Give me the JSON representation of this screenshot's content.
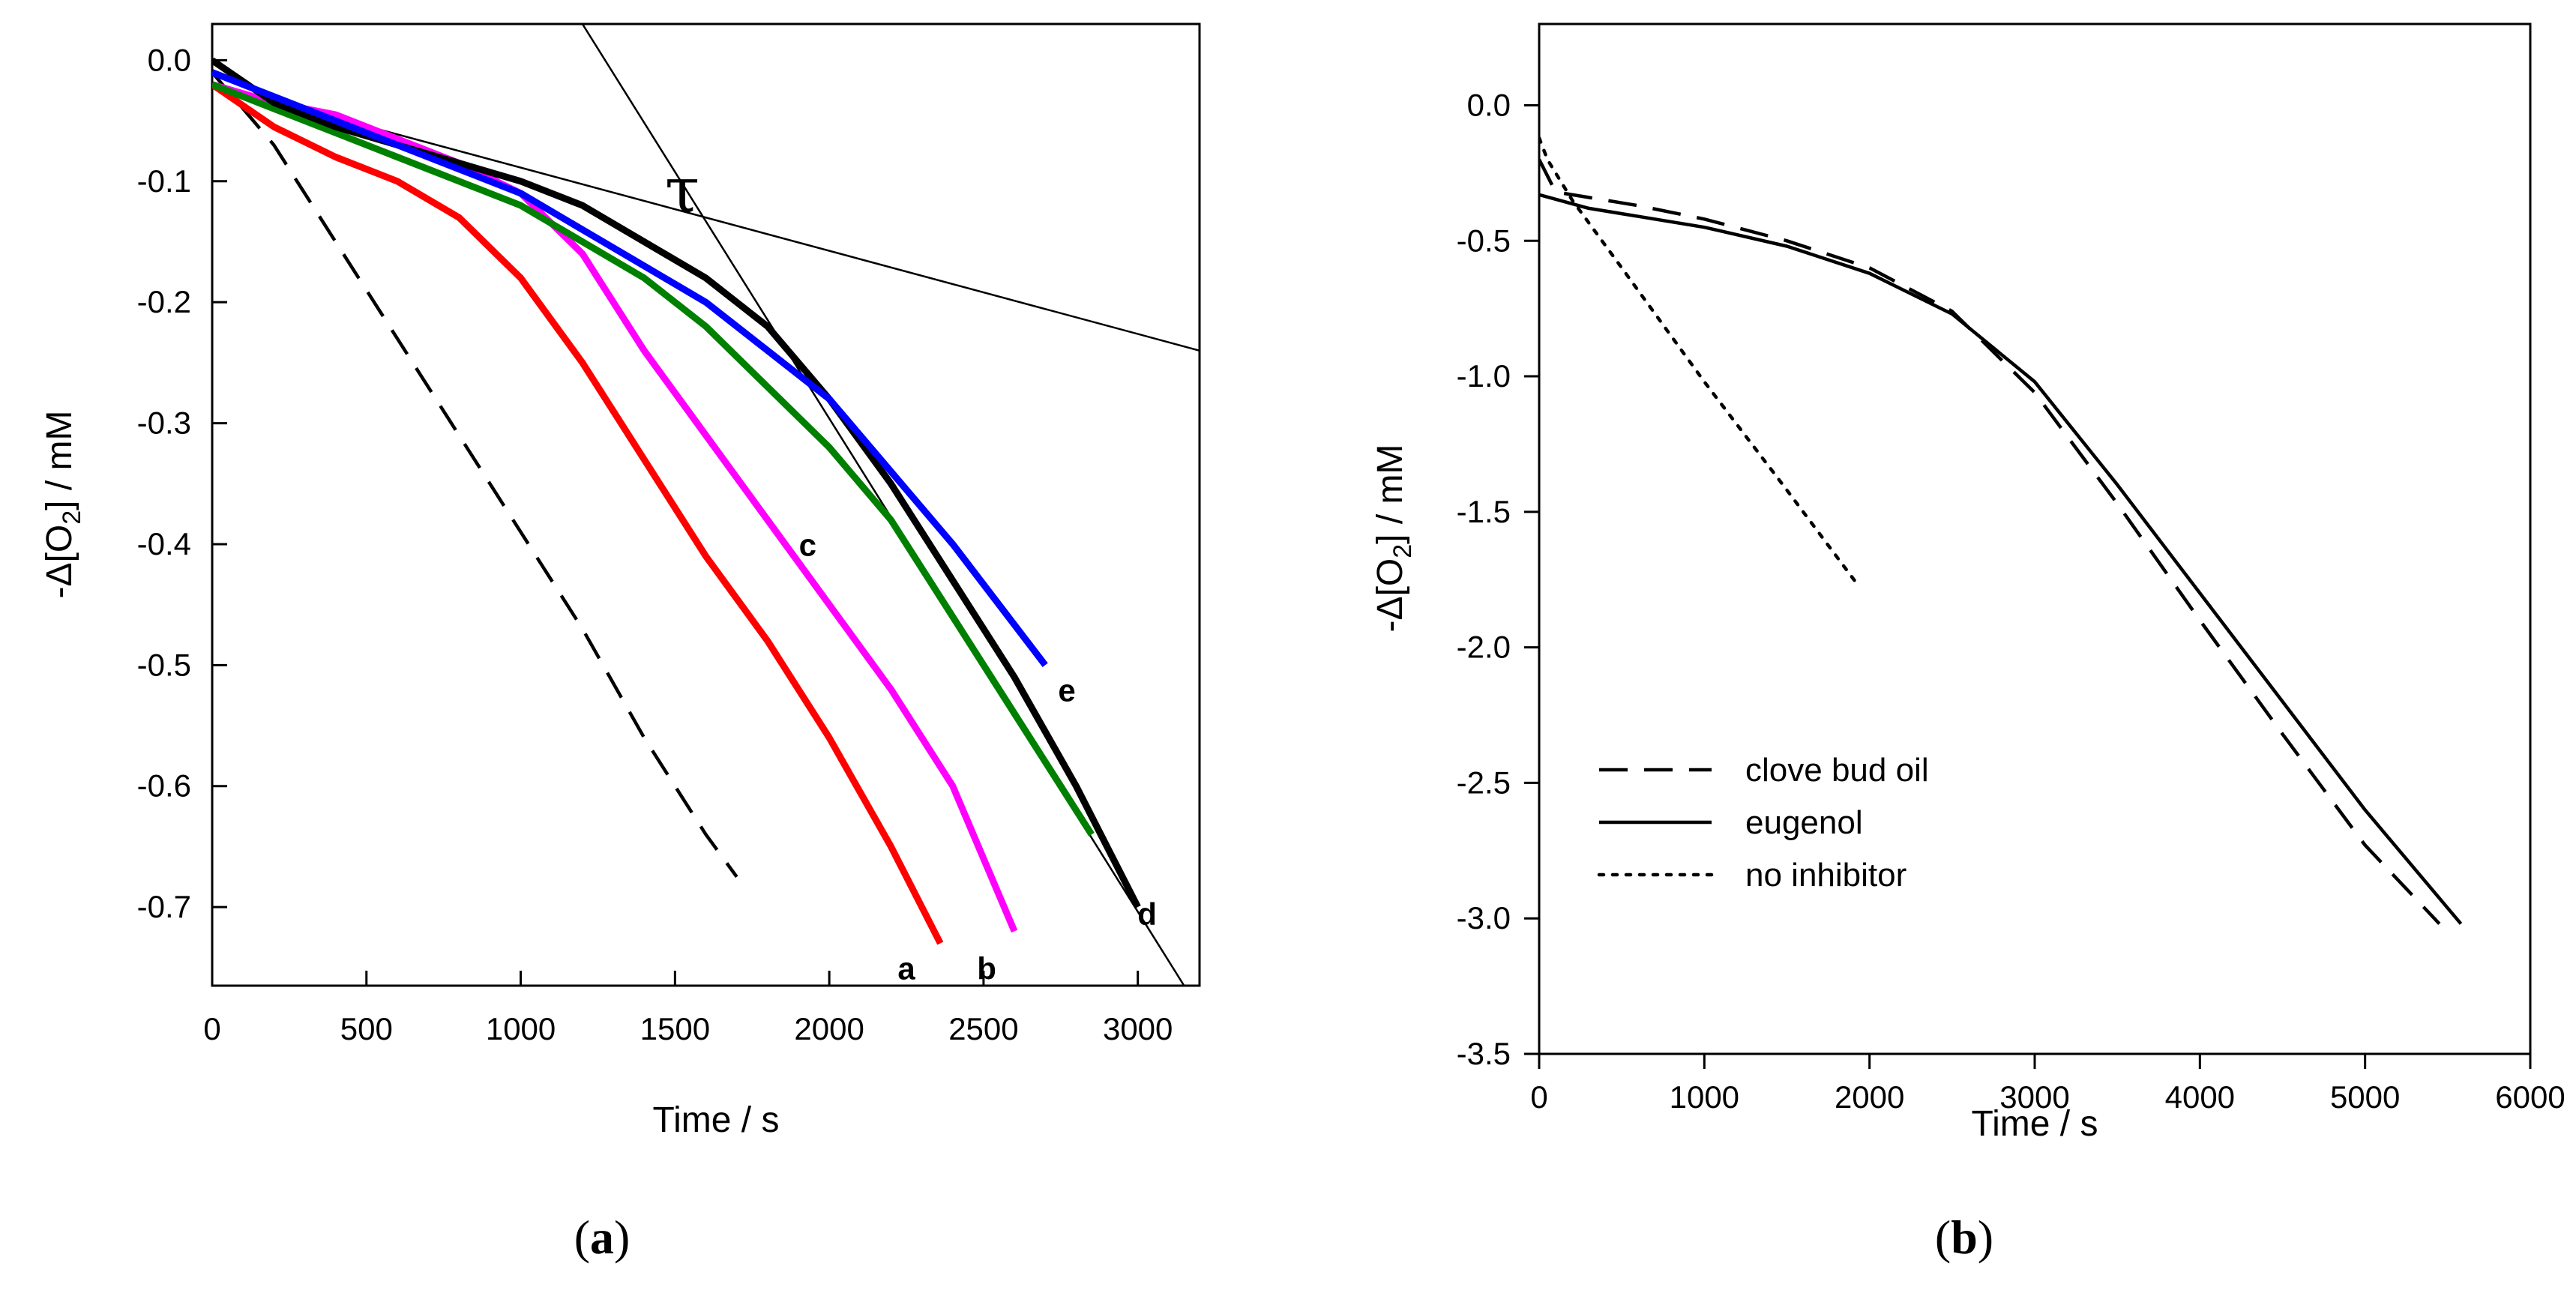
{
  "chart_data": [
    {
      "type": "line",
      "panel_label": "a",
      "xlabel": "Time / s",
      "ylabel": "-Δ[O2] / mM",
      "xlim": [
        0,
        3200
      ],
      "ylim": [
        -0.765,
        0.03
      ],
      "x_ticks": [
        0,
        500,
        1000,
        1500,
        2000,
        2500,
        3000
      ],
      "y_ticks": [
        0.0,
        -0.1,
        -0.2,
        -0.3,
        -0.4,
        -0.5,
        -0.6,
        -0.7
      ],
      "x_tick_labels": [
        "0",
        "500",
        "1000",
        "1500",
        "2000",
        "2500",
        "3000"
      ],
      "y_tick_labels": [
        "0.0",
        "-0.1",
        "-0.2",
        "-0.3",
        "-0.4",
        "-0.5",
        "-0.6",
        "-0.7"
      ],
      "series": [
        {
          "name": "dashed",
          "label": "",
          "color": "#000000",
          "dash": "dashed",
          "x": [
            0,
            200,
            400,
            600,
            800,
            1000,
            1200,
            1400,
            1600,
            1700
          ],
          "y": [
            -0.01,
            -0.07,
            -0.15,
            -0.23,
            -0.31,
            -0.39,
            -0.47,
            -0.56,
            -0.64,
            -0.675
          ]
        },
        {
          "name": "a",
          "label": "a",
          "color": "#ff0000",
          "dash": "solid",
          "x": [
            0,
            200,
            400,
            600,
            800,
            1000,
            1200,
            1400,
            1600,
            1800,
            2000,
            2200,
            2360
          ],
          "y": [
            -0.02,
            -0.055,
            -0.08,
            -0.1,
            -0.13,
            -0.18,
            -0.25,
            -0.33,
            -0.41,
            -0.48,
            -0.56,
            -0.65,
            -0.73
          ]
        },
        {
          "name": "b",
          "label": "b",
          "color": "#ff00ff",
          "dash": "solid",
          "x": [
            0,
            200,
            400,
            600,
            800,
            1000,
            1200,
            1400,
            1600,
            1800,
            2000,
            2200,
            2400,
            2600
          ],
          "y": [
            -0.02,
            -0.035,
            -0.045,
            -0.065,
            -0.085,
            -0.11,
            -0.16,
            -0.24,
            -0.31,
            -0.38,
            -0.45,
            -0.52,
            -0.6,
            -0.72
          ]
        },
        {
          "name": "c",
          "label": "c",
          "color": "#008000",
          "dash": "solid",
          "x": [
            0,
            200,
            400,
            600,
            800,
            1000,
            1200,
            1400,
            1600,
            1800,
            2000,
            2200,
            2400,
            2600,
            2850
          ],
          "y": [
            -0.02,
            -0.04,
            -0.06,
            -0.08,
            -0.1,
            -0.12,
            -0.15,
            -0.18,
            -0.22,
            -0.27,
            -0.32,
            -0.38,
            -0.46,
            -0.54,
            -0.64
          ]
        },
        {
          "name": "d",
          "label": "d",
          "color": "#000000",
          "dash": "solid",
          "x": [
            0,
            200,
            400,
            600,
            800,
            1000,
            1200,
            1400,
            1600,
            1800,
            2000,
            2200,
            2400,
            2600,
            2800,
            3000
          ],
          "y": [
            0.0,
            -0.035,
            -0.055,
            -0.07,
            -0.085,
            -0.1,
            -0.12,
            -0.15,
            -0.18,
            -0.22,
            -0.28,
            -0.35,
            -0.43,
            -0.51,
            -0.6,
            -0.7
          ]
        },
        {
          "name": "e",
          "label": "e",
          "color": "#0000ff",
          "dash": "solid",
          "x": [
            0,
            200,
            400,
            600,
            800,
            1000,
            1200,
            1400,
            1600,
            1800,
            2000,
            2200,
            2400,
            2700
          ],
          "y": [
            -0.01,
            -0.03,
            -0.05,
            -0.07,
            -0.09,
            -0.11,
            -0.14,
            -0.17,
            -0.2,
            -0.24,
            -0.28,
            -0.34,
            -0.4,
            -0.5
          ]
        }
      ],
      "tangent_lines": [
        {
          "x": [
            0,
            3200
          ],
          "y": [
            -0.02,
            -0.24
          ]
        },
        {
          "x": [
            1200,
            3150
          ],
          "y": [
            0.03,
            -0.765
          ]
        }
      ],
      "annotation": "τ",
      "label_positions": {
        "a": [
          2250,
          -0.735
        ],
        "b": [
          2510,
          -0.735
        ],
        "c": [
          1930,
          -0.385
        ],
        "d": [
          3030,
          -0.69
        ],
        "e": [
          2770,
          -0.505
        ]
      }
    },
    {
      "type": "line",
      "panel_label": "b",
      "xlabel": "Time / s",
      "ylabel": "-Δ[O2] / mM",
      "xlim": [
        0,
        6000
      ],
      "ylim": [
        -3.5,
        0.3
      ],
      "x_ticks": [
        0,
        1000,
        2000,
        3000,
        4000,
        5000,
        6000
      ],
      "y_ticks": [
        0.0,
        -0.5,
        -1.0,
        -1.5,
        -2.0,
        -2.5,
        -3.0,
        -3.5
      ],
      "x_tick_labels": [
        "0",
        "1000",
        "2000",
        "3000",
        "4000",
        "5000",
        "6000"
      ],
      "y_tick_labels": [
        "0.0",
        "-0.5",
        "-1.0",
        "-1.5",
        "-2.0",
        "-2.5",
        "-3.0",
        "-3.5"
      ],
      "series": [
        {
          "name": "clove bud oil",
          "color": "#000000",
          "dash": "dashed",
          "x": [
            0,
            100,
            300,
            600,
            1000,
            1500,
            2000,
            2500,
            3000,
            3500,
            4000,
            4500,
            5000,
            5450
          ],
          "y": [
            -0.2,
            -0.32,
            -0.34,
            -0.37,
            -0.42,
            -0.5,
            -0.6,
            -0.76,
            -1.06,
            -1.47,
            -1.9,
            -2.32,
            -2.73,
            -3.02
          ]
        },
        {
          "name": "eugenol",
          "color": "#000000",
          "dash": "solid",
          "x": [
            0,
            300,
            600,
            1000,
            1500,
            2000,
            2500,
            3000,
            3500,
            4000,
            4500,
            5000,
            5580
          ],
          "y": [
            -0.33,
            -0.38,
            -0.41,
            -0.45,
            -0.52,
            -0.62,
            -0.77,
            -1.02,
            -1.4,
            -1.8,
            -2.2,
            -2.6,
            -3.02
          ]
        },
        {
          "name": "no inhibitor",
          "color": "#000000",
          "dash": "dotted",
          "x": [
            0,
            50,
            200,
            500,
            1000,
            1500,
            1930
          ],
          "y": [
            -0.12,
            -0.2,
            -0.35,
            -0.6,
            -1.02,
            -1.42,
            -1.77
          ]
        }
      ],
      "legend": [
        "clove bud oil",
        "eugenol",
        "no inhibitor"
      ],
      "legend_position": "bottom-left"
    }
  ]
}
